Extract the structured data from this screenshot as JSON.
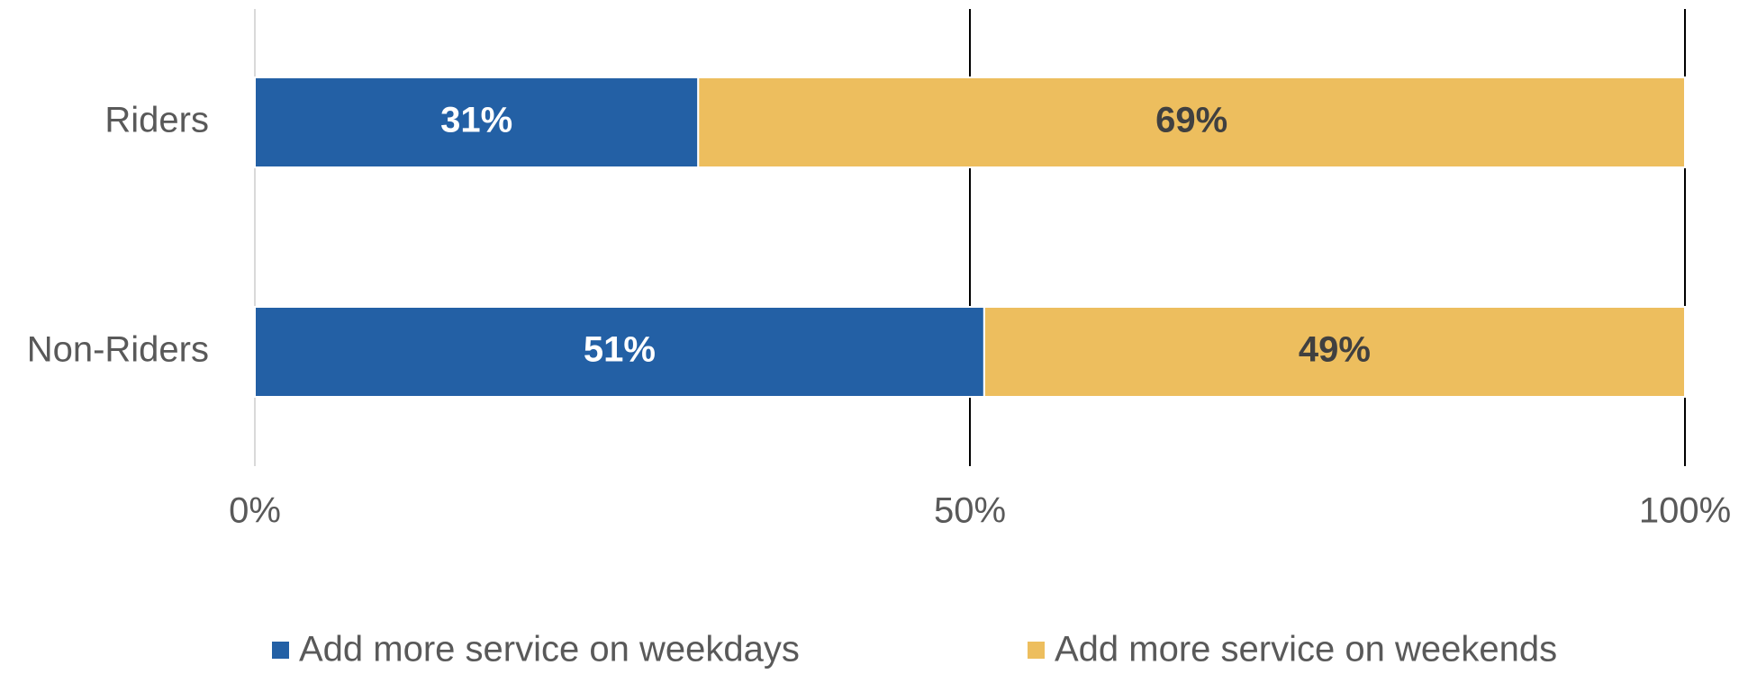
{
  "chart_data": {
    "type": "bar",
    "orientation": "horizontal",
    "stacked": true,
    "categories": [
      "Riders",
      "Non-Riders"
    ],
    "series": [
      {
        "name": "Add more service on weekdays",
        "values": [
          31,
          51
        ],
        "labels": [
          "31%",
          "51%"
        ],
        "color": "#2360A5",
        "label_color": "#FFFFFF"
      },
      {
        "name": "Add more service on weekends",
        "values": [
          69,
          49
        ],
        "labels": [
          "69%",
          "49%"
        ],
        "color": "#EDBE5E",
        "label_color": "#404040"
      }
    ],
    "xlim": [
      0,
      100
    ],
    "x_ticks": [
      0,
      50,
      100
    ],
    "x_tick_labels": [
      "0%",
      "50%",
      "100%"
    ],
    "grid": "vertical gridlines at 50% and 100%",
    "legend_position": "bottom"
  }
}
